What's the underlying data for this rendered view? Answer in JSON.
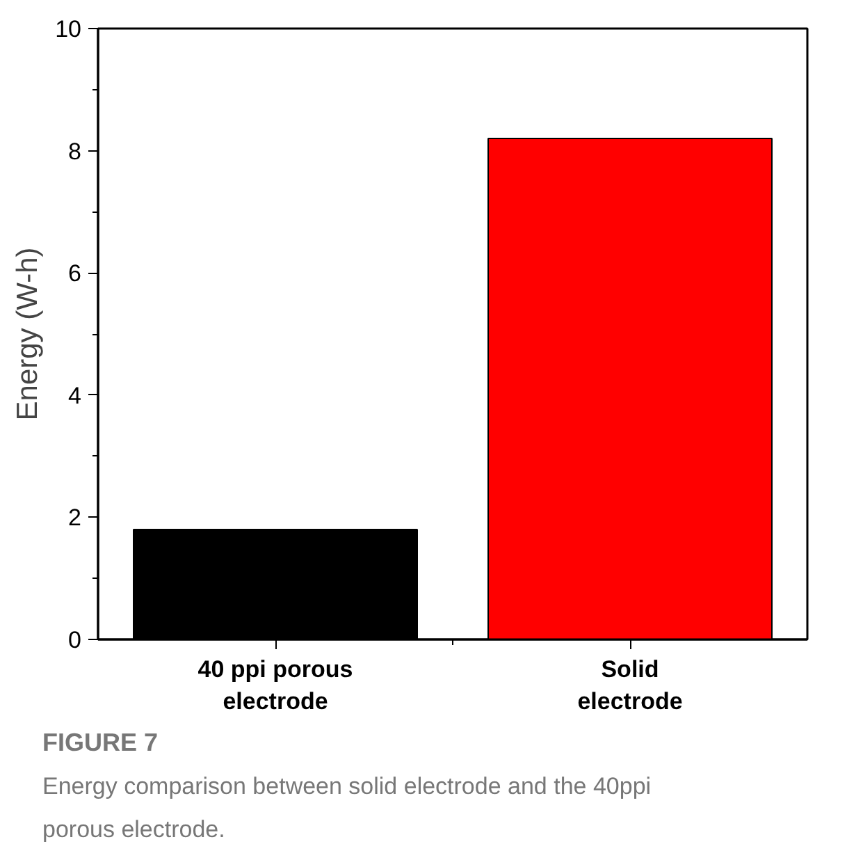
{
  "chart_data": {
    "type": "bar",
    "categories": [
      "40 ppi porous\nelectrode",
      "Solid\nelectrode"
    ],
    "values": [
      1.8,
      8.2
    ],
    "colors": [
      "#000000",
      "#ff0000"
    ],
    "ylabel": "Energy (W-h)",
    "ylim": [
      0,
      10
    ],
    "yticks": [
      0,
      2,
      4,
      6,
      8,
      10
    ],
    "grid": false,
    "annotations": [
      "FIGURE 7",
      "Energy comparison between solid electrode and the 40ppi porous electrode."
    ]
  }
}
